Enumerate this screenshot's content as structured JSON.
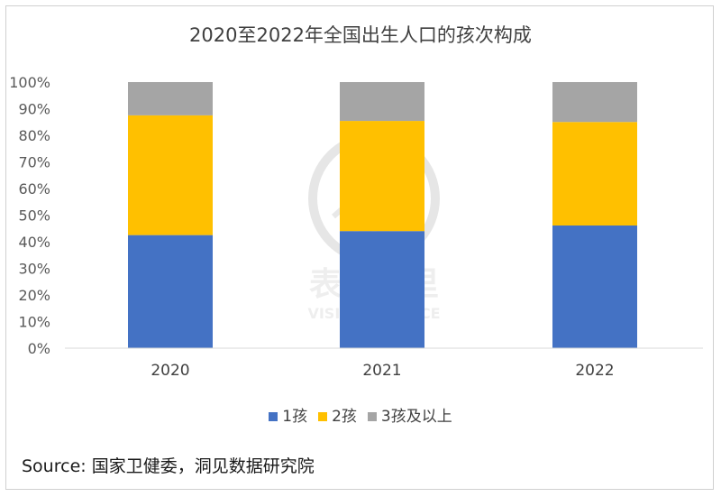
{
  "chart_data": {
    "type": "bar",
    "stacked": true,
    "title": "2020至2022年全国出生人口的孩次构成",
    "categories": [
      "2020",
      "2021",
      "2022"
    ],
    "series": [
      {
        "name": "1孩",
        "color": "#4472C4",
        "values": [
          42.5,
          44.0,
          46.1
        ]
      },
      {
        "name": "2孩",
        "color": "#FFC000",
        "values": [
          45.0,
          41.4,
          38.9
        ]
      },
      {
        "name": "3孩及以上",
        "color": "#A5A5A5",
        "values": [
          12.5,
          14.6,
          15.0
        ]
      }
    ],
    "yticks": [
      "0%",
      "10%",
      "20%",
      "30%",
      "40%",
      "50%",
      "60%",
      "70%",
      "80%",
      "90%",
      "100%"
    ],
    "ylim": [
      0,
      100
    ],
    "grid": false,
    "legend_position": "bottom"
  },
  "source": "Source: 国家卫健委，洞见数据研究院",
  "watermark": {
    "text_cn": "表外表里",
    "text_en": "VISION FINANCE"
  }
}
